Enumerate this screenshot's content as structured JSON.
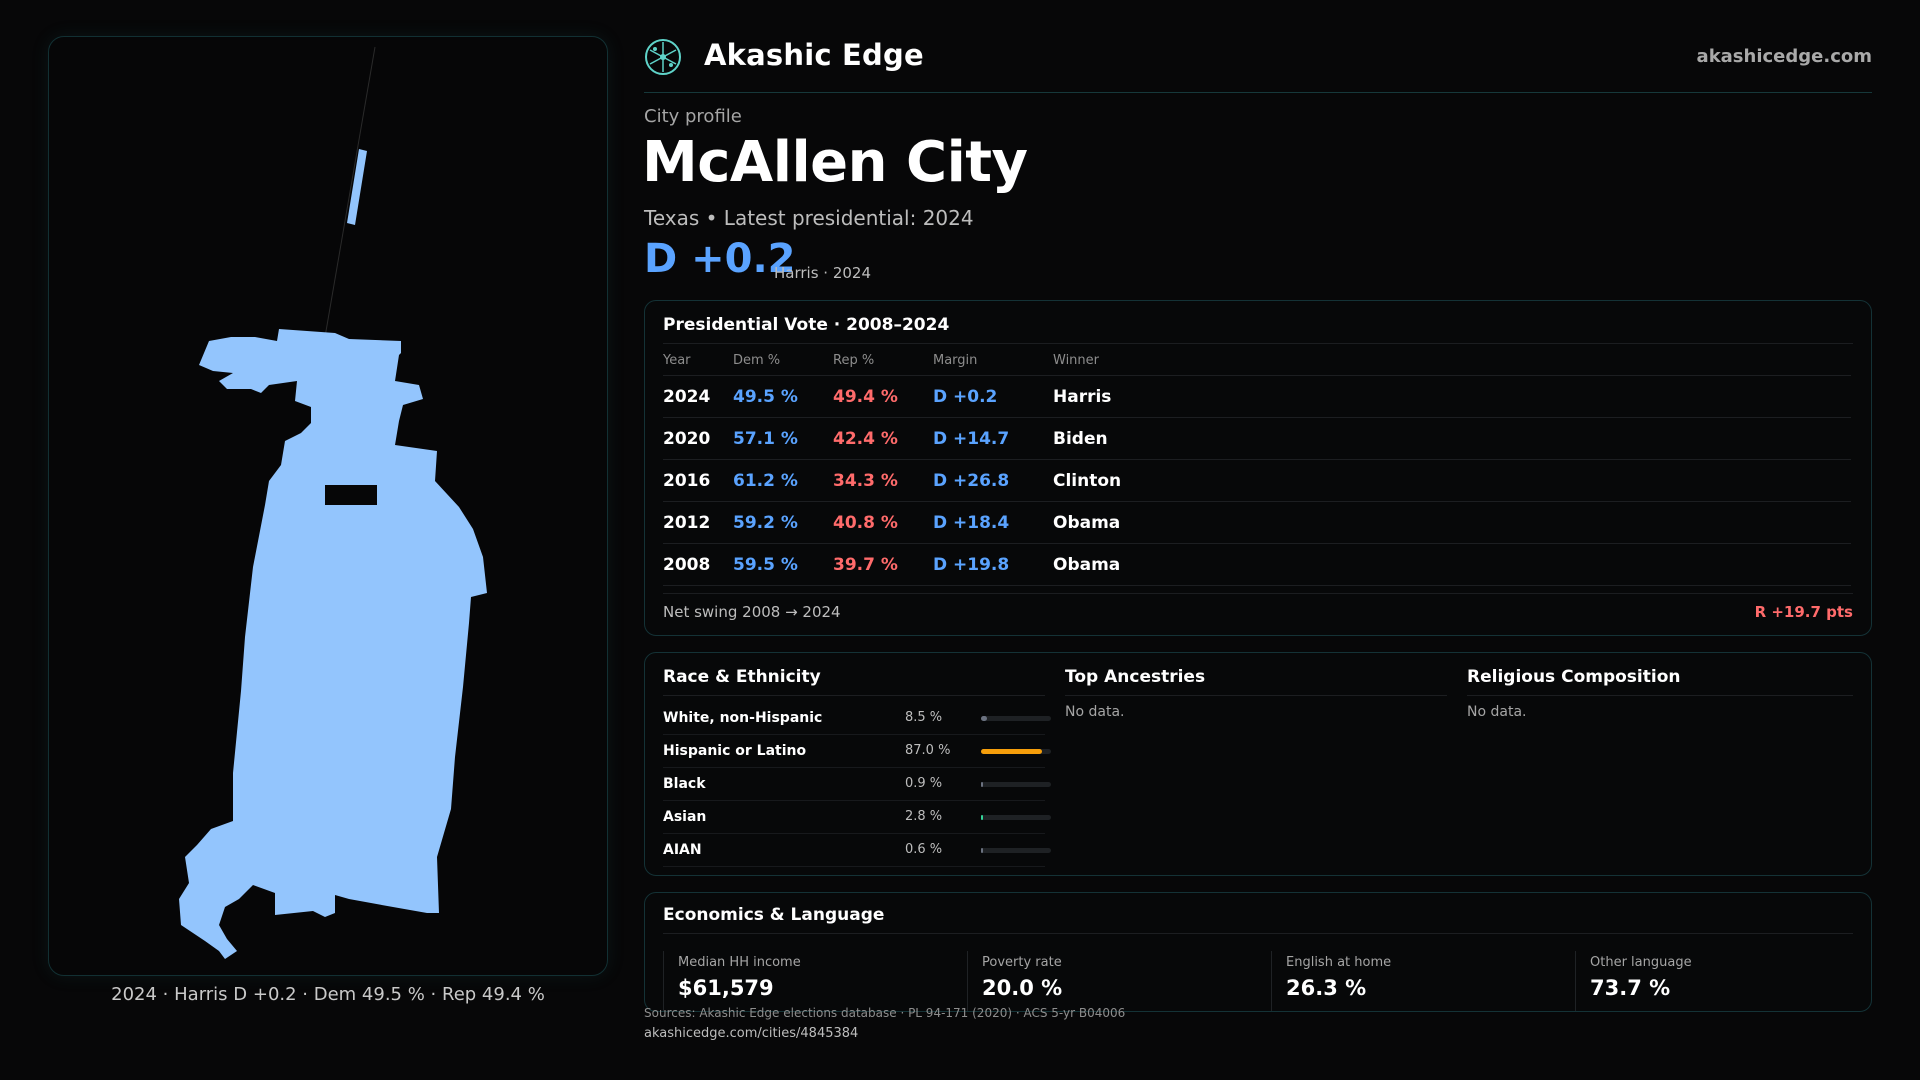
{
  "brand": {
    "name": "Akashic Edge",
    "site": "akashicedge.com",
    "logo_icon": "atom-network-icon"
  },
  "profile": {
    "eyebrow": "City profile",
    "city": "McAllen City",
    "subtitle": "Texas • Latest presidential: 2024",
    "margin": "D +0.2",
    "margin_detail": "Harris · 2024"
  },
  "map": {
    "fill_color": "#93c5fd",
    "caption": "2024 · Harris D +0.2 · Dem 49.5 % · Rep 49.4 %"
  },
  "presidential": {
    "title": "Presidential Vote · 2008–2024",
    "columns": [
      "Year",
      "Dem %",
      "Rep %",
      "Margin",
      "Winner"
    ],
    "rows": [
      {
        "year": "2024",
        "dem": "49.5 %",
        "rep": "49.4 %",
        "margin": "D +0.2",
        "winner": "Harris"
      },
      {
        "year": "2020",
        "dem": "57.1 %",
        "rep": "42.4 %",
        "margin": "D +14.7",
        "winner": "Biden"
      },
      {
        "year": "2016",
        "dem": "61.2 %",
        "rep": "34.3 %",
        "margin": "D +26.8",
        "winner": "Clinton"
      },
      {
        "year": "2012",
        "dem": "59.2 %",
        "rep": "40.8 %",
        "margin": "D +18.4",
        "winner": "Obama"
      },
      {
        "year": "2008",
        "dem": "59.5 %",
        "rep": "39.7 %",
        "margin": "D +19.8",
        "winner": "Obama"
      }
    ],
    "swing_label": "Net swing 2008 → 2024",
    "swing_value": "R +19.7 pts",
    "colors": {
      "dem": "#5aa3ff",
      "rep": "#ff6b6b"
    }
  },
  "race": {
    "title": "Race & Ethnicity",
    "rows": [
      {
        "label": "White, non-Hispanic",
        "pct": "8.5 %",
        "value": 8.5,
        "color": "#6b7280"
      },
      {
        "label": "Hispanic or Latino",
        "pct": "87.0 %",
        "value": 87.0,
        "color": "#f59e0b"
      },
      {
        "label": "Black",
        "pct": "0.9 %",
        "value": 0.9,
        "color": "#6b7280"
      },
      {
        "label": "Asian",
        "pct": "2.8 %",
        "value": 2.8,
        "color": "#34d399"
      },
      {
        "label": "AIAN",
        "pct": "0.6 %",
        "value": 0.6,
        "color": "#6b7280"
      }
    ]
  },
  "ancestries": {
    "title": "Top Ancestries",
    "empty": "No data."
  },
  "religion": {
    "title": "Religious Composition",
    "empty": "No data."
  },
  "economics": {
    "title": "Economics & Language",
    "stats": [
      {
        "label": "Median HH income",
        "value": "$61,579"
      },
      {
        "label": "Poverty rate",
        "value": "20.0 %"
      },
      {
        "label": "English at home",
        "value": "26.3 %"
      },
      {
        "label": "Other language",
        "value": "73.7 %"
      }
    ]
  },
  "footer": {
    "sources": "Sources: Akashic Edge elections database · PL 94-171 (2020) · ACS 5-yr B04006",
    "url": "akashicedge.com/cities/4845384"
  }
}
